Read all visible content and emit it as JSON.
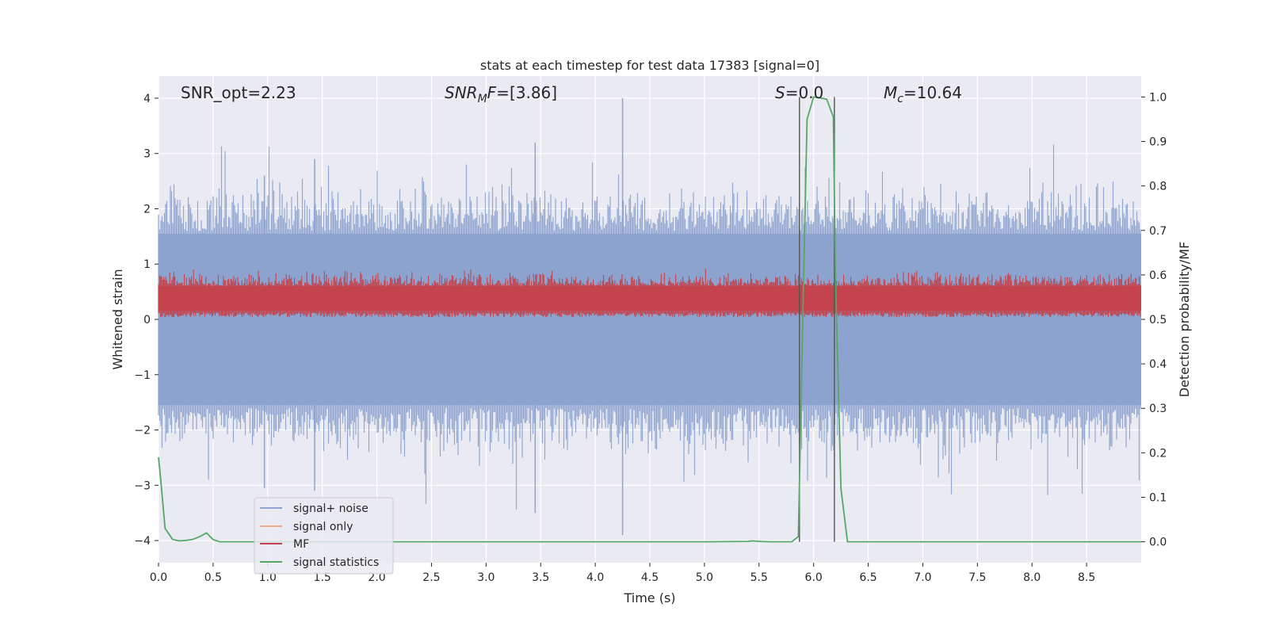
{
  "chart_data": {
    "type": "line",
    "title": "stats at each timestep for test data 17383 [signal=0]",
    "xlabel": "Time (s)",
    "ylabel_left": "Whitened strain",
    "ylabel_right": "Detection probability/MF",
    "xlim": [
      0.0,
      9.0
    ],
    "ylim_left": [
      -4.4,
      4.4
    ],
    "ylim_right": [
      -0.047,
      1.047
    ],
    "x_ticks": [
      "0.0",
      "0.5",
      "1.0",
      "1.5",
      "2.0",
      "2.5",
      "3.0",
      "3.5",
      "4.0",
      "4.5",
      "5.0",
      "5.5",
      "6.0",
      "6.5",
      "7.0",
      "7.5",
      "8.0",
      "8.5"
    ],
    "y_ticks_left": [
      "−4",
      "−3",
      "−2",
      "−1",
      "0",
      "1",
      "2",
      "3",
      "4"
    ],
    "y_ticks_right": [
      "0.0",
      "0.1",
      "0.2",
      "0.3",
      "0.4",
      "0.5",
      "0.6",
      "0.7",
      "0.8",
      "0.9",
      "1.0"
    ],
    "annotations": {
      "snr_opt": "SNR_opt=2.23",
      "snr_mf": "[3.86]",
      "s": "0.0",
      "mc": "10.64"
    },
    "legend": {
      "location": "lower left",
      "entries": [
        "signal+ noise",
        "signal only",
        "MF",
        "signal statistics"
      ]
    },
    "colors": {
      "signal_noise": "#8da3cf",
      "signal_only": "#f0a88a",
      "mf": "#c4434c",
      "stats": "#55a868",
      "vline": "#555555",
      "background": "#eaeaf2"
    },
    "vlines": [
      5.87,
      6.19
    ],
    "series": [
      {
        "name": "signal+ noise",
        "axis": "left",
        "description_range": [
          -3.9,
          4.0
        ]
      },
      {
        "name": "signal only",
        "axis": "left",
        "values": []
      },
      {
        "name": "MF",
        "axis": "right",
        "range": [
          0.5,
          0.6
        ]
      },
      {
        "name": "signal statistics",
        "axis": "right",
        "x": [
          0.0,
          0.02,
          0.06,
          0.13,
          0.19,
          0.25,
          0.31,
          0.38,
          0.44,
          0.5,
          0.56,
          0.75,
          1.0,
          2.0,
          3.0,
          4.0,
          4.5,
          5.0,
          5.4,
          5.44,
          5.5,
          5.6,
          5.7,
          5.8,
          5.86,
          5.9,
          5.94,
          6.0,
          6.06,
          6.12,
          6.18,
          6.2,
          6.25,
          6.31,
          6.5,
          7.0,
          7.5,
          8.0,
          8.5,
          9.0
        ],
        "y": [
          0.19,
          0.14,
          0.03,
          0.005,
          0.002,
          0.003,
          0.005,
          0.012,
          0.02,
          0.005,
          0.0,
          0.0,
          0.0,
          0.0,
          0.0,
          0.0,
          0.0,
          0.0,
          0.001,
          0.002,
          0.001,
          0.0,
          0.0,
          0.0,
          0.012,
          0.5,
          0.95,
          1.0,
          0.998,
          0.995,
          0.955,
          0.6,
          0.12,
          0.0,
          0.0,
          0.0,
          0.0,
          0.0,
          0.0,
          0.0
        ]
      }
    ]
  }
}
